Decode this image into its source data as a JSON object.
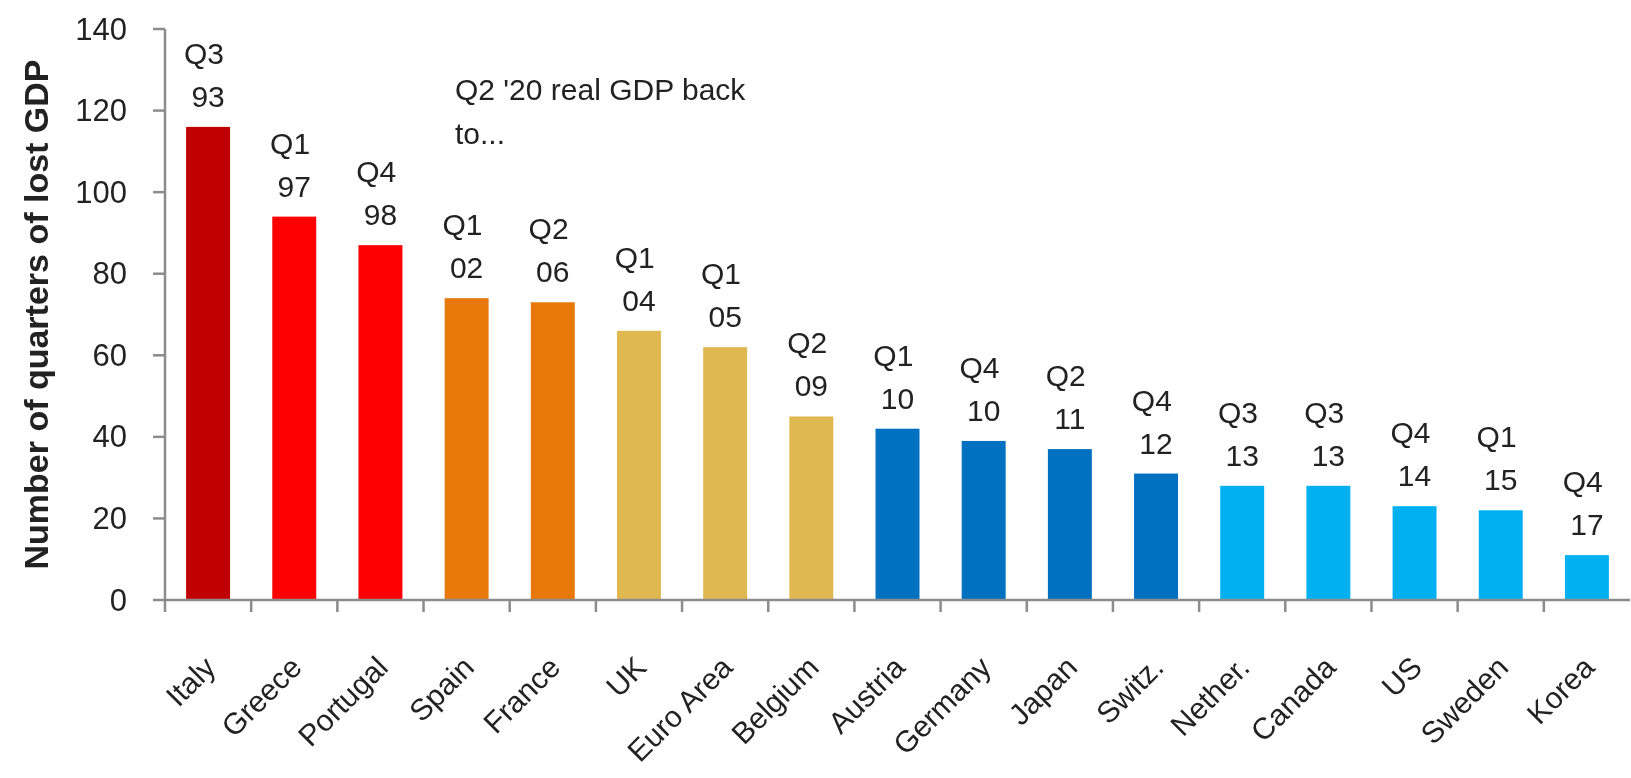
{
  "chart_data": {
    "type": "bar",
    "ylabel": "Number of quarters of lost GDP",
    "categories": [
      "Italy",
      "Greece",
      "Portugal",
      "Spain",
      "France",
      "UK",
      "Euro Area",
      "Belgium",
      "Austria",
      "Germany",
      "Japan",
      "Switz.",
      "Nether.",
      "Canada",
      "US",
      "Sweden",
      "Korea"
    ],
    "values": [
      116,
      94,
      87,
      74,
      73,
      66,
      62,
      45,
      42,
      39,
      37,
      31,
      28,
      28,
      23,
      22,
      11
    ],
    "colors": [
      "#c00000",
      "#ff0000",
      "#ff0000",
      "#e8780a",
      "#e8780a",
      "#e0b850",
      "#e0b850",
      "#e0b850",
      "#0070c0",
      "#0070c0",
      "#0070c0",
      "#0070c0",
      "#00b0f0",
      "#00b0f0",
      "#00b0f0",
      "#00b0f0",
      "#00b0f0"
    ],
    "value_labels": [
      "Q3 93",
      "Q1 97",
      "Q4 98",
      "Q1 02",
      "Q2 06",
      "Q1 04",
      "Q1 05",
      "Q2 09",
      "Q1 10",
      "Q4 10",
      "Q2 11",
      "Q4 12",
      "Q3 13",
      "Q3 13",
      "Q4 14",
      "Q1 15",
      "Q4 17"
    ],
    "ylim": [
      0,
      140
    ],
    "yticks": [
      0,
      20,
      40,
      60,
      80,
      100,
      120,
      140
    ],
    "annotations": [
      "Q2 '20 real GDP back to..."
    ]
  }
}
